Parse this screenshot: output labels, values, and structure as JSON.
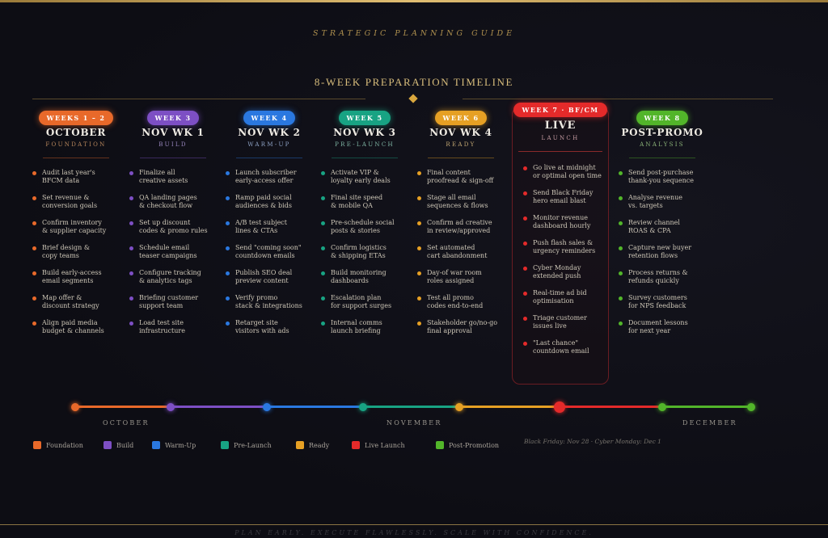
{
  "header": {
    "subtitle": "STRATEGIC PLANNING GUIDE",
    "title": "8-WEEK PREPARATION TIMELINE"
  },
  "columns": [
    {
      "badge": "WEEKS 1 – 2",
      "title": "OCTOBER",
      "sub": "FOUNDATION",
      "color": "#e8692a",
      "sub_color": "#b8875c",
      "tasks": [
        "Audit last year's\nBFCM data",
        "Set revenue &\nconversion goals",
        "Confirm inventory\n& supplier capacity",
        "Brief design &\ncopy teams",
        "Build early-access\nemail segments",
        "Map offer &\ndiscount strategy",
        "Align paid media\nbudget & channels"
      ]
    },
    {
      "badge": "WEEK 3",
      "title": "NOV WK 1",
      "sub": "BUILD",
      "color": "#7d4fc4",
      "sub_color": "#9a88c0",
      "tasks": [
        "Finalize all\ncreative assets",
        "QA landing pages\n& checkout flow",
        "Set up discount\ncodes & promo rules",
        "Schedule email\nteaser campaigns",
        "Configure tracking\n& analytics tags",
        "Briefing customer\nsupport team",
        "Load test site\ninfrastructure"
      ]
    },
    {
      "badge": "WEEK 4",
      "title": "NOV WK 2",
      "sub": "WARM-UP",
      "color": "#2a78e0",
      "sub_color": "#8ea2c4",
      "tasks": [
        "Launch subscriber\nearly-access offer",
        "Ramp paid social\naudiences & bids",
        "A/B test subject\nlines & CTAs",
        "Send \"coming soon\"\ncountdown emails",
        "Publish SEO deal\npreview content",
        "Verify promo\nstack & integrations",
        "Retarget site\nvisitors with ads"
      ]
    },
    {
      "badge": "WEEK 5",
      "title": "NOV WK 3",
      "sub": "PRE-LAUNCH",
      "color": "#18a383",
      "sub_color": "#7fb5a4",
      "tasks": [
        "Activate VIP &\nloyalty early deals",
        "Final site speed\n& mobile QA",
        "Pre-schedule social\nposts & stories",
        "Confirm logistics\n& shipping ETAs",
        "Build monitoring\ndashboards",
        "Escalation plan\nfor support surges",
        "Internal comms\nlaunch briefing"
      ]
    },
    {
      "badge": "WEEK 6",
      "title": "NOV WK 4",
      "sub": "READY",
      "color": "#e6a024",
      "sub_color": "#c2a773",
      "tasks": [
        "Final content\nproofread & sign-off",
        "Stage all email\nsequences & flows",
        "Confirm ad creative\nin review/approved",
        "Set automated\ncart abandonment",
        "Day-of war room\nroles assigned",
        "Test all promo\ncodes end-to-end",
        "Stakeholder go/no-go\nfinal approval"
      ]
    },
    {
      "badge": "WEEK 7 · BF/CM",
      "title": "LIVE",
      "sub": "LAUNCH",
      "color": "#e42a2a",
      "sub_color": "#c49aa0",
      "tasks": [
        "Go live at midnight\nor optimal open time",
        "Send Black Friday\nhero email blast",
        "Monitor revenue\ndashboard hourly",
        "Push flash sales &\nurgency reminders",
        "Cyber Monday\nextended push",
        "Real-time ad bid\noptimisation",
        "Triage customer\nissues live",
        "\"Last chance\"\ncountdown email"
      ]
    },
    {
      "badge": "WEEK 8",
      "title": "POST-PROMO",
      "sub": "ANALYSIS",
      "color": "#52b52a",
      "sub_color": "#8db57a",
      "tasks": [
        "Send post-purchase\nthank-you sequence",
        "Analyse revenue\nvs. targets",
        "Review channel\nROAS & CPA",
        "Capture new buyer\nretention flows",
        "Process returns &\nrefunds quickly",
        "Survey customers\nfor NPS feedback",
        "Document lessons\nfor next year"
      ]
    }
  ],
  "timeline": {
    "months": [
      "OCTOBER",
      "NOVEMBER",
      "DECEMBER"
    ],
    "node_colors": [
      "#e8692a",
      "#7d4fc4",
      "#2a78e0",
      "#18a383",
      "#e6a024",
      "#e42a2a",
      "#52b52a",
      "#52b52a"
    ]
  },
  "legend": [
    {
      "label": "Foundation",
      "color": "#e8692a"
    },
    {
      "label": "Build",
      "color": "#7d4fc4"
    },
    {
      "label": "Warm-Up",
      "color": "#2a78e0"
    },
    {
      "label": "Pre-Launch",
      "color": "#18a383"
    },
    {
      "label": "Ready",
      "color": "#e6a024"
    },
    {
      "label": "Live Launch",
      "color": "#e42a2a"
    },
    {
      "label": "Post-Promotion",
      "color": "#52b52a"
    }
  ],
  "note": "Black Friday: Nov 28 · Cyber Monday: Dec 1",
  "footer": "PLAN EARLY. EXECUTE FLAWLESSLY. SCALE WITH CONFIDENCE."
}
